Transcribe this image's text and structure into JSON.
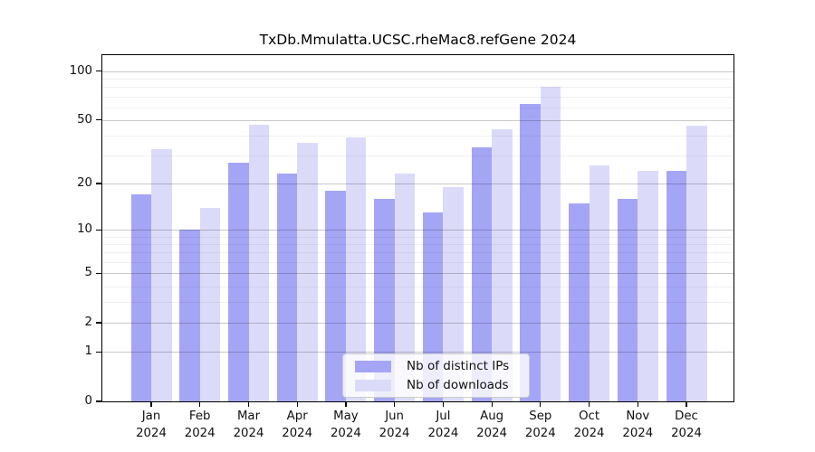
{
  "chart_data": {
    "type": "bar",
    "title": "TxDb.Mmulatta.UCSC.rheMac8.refGene 2024",
    "xlabel": "",
    "ylabel": "",
    "year_label": "2024",
    "categories": [
      "Jan",
      "Feb",
      "Mar",
      "Apr",
      "May",
      "Jun",
      "Jul",
      "Aug",
      "Sep",
      "Oct",
      "Nov",
      "Dec"
    ],
    "series": [
      {
        "name": "Nb of distinct IPs",
        "color": "#a5a5f6",
        "values": [
          17,
          10,
          27,
          23,
          18,
          16,
          13,
          34,
          63,
          15,
          16,
          24
        ]
      },
      {
        "name": "Nb of downloads",
        "color": "#dbdbf9",
        "values": [
          33,
          14,
          47,
          36,
          39,
          23,
          19,
          44,
          80,
          26,
          24,
          46
        ]
      }
    ],
    "yscale": "log1p",
    "ylim": [
      0,
      126
    ],
    "y_major_ticks": [
      0,
      1,
      2,
      5,
      10,
      20,
      50,
      100
    ],
    "y_minor_ticks": [
      3,
      4,
      6,
      7,
      8,
      9,
      30,
      40,
      60,
      70,
      80,
      90
    ],
    "grid": true,
    "legend_position": "lower-center",
    "colors": {
      "background": "#ffffff",
      "major_grid": "#c9c9c9",
      "minor_grid": "#ececec",
      "spine": "#000000",
      "legend_border": "#cccccc"
    }
  }
}
